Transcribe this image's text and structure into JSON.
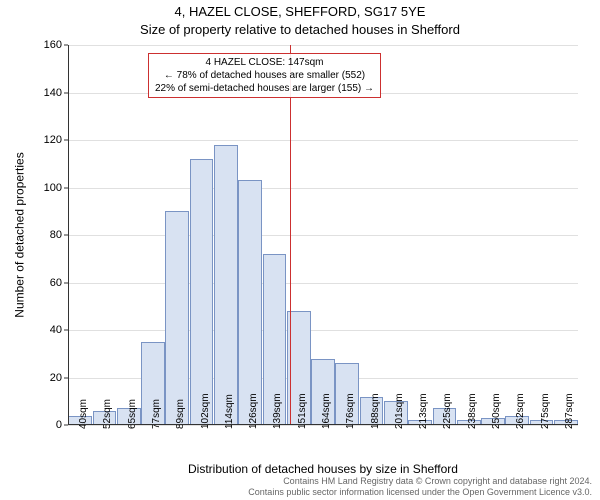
{
  "titles": {
    "line1": "4, HAZEL CLOSE, SHEFFORD, SG17 5YE",
    "line2": "Size of property relative to detached houses in Shefford"
  },
  "yaxis": {
    "label": "Number of detached properties",
    "min": 0,
    "max": 160,
    "ticks": [
      0,
      20,
      40,
      60,
      80,
      100,
      120,
      140,
      160
    ]
  },
  "xaxis": {
    "label": "Distribution of detached houses by size in Shefford",
    "tick_labels": [
      "40sqm",
      "52sqm",
      "65sqm",
      "77sqm",
      "89sqm",
      "102sqm",
      "114sqm",
      "126sqm",
      "139sqm",
      "151sqm",
      "164sqm",
      "176sqm",
      "188sqm",
      "201sqm",
      "213sqm",
      "225sqm",
      "238sqm",
      "250sqm",
      "262sqm",
      "275sqm",
      "287sqm"
    ]
  },
  "bars": {
    "values": [
      4,
      6,
      7,
      35,
      90,
      112,
      118,
      103,
      72,
      48,
      28,
      26,
      12,
      10,
      2,
      7,
      2,
      3,
      4,
      2,
      2
    ],
    "fill_color": "#d8e2f2",
    "border_color": "#7a94c4"
  },
  "reference_line": {
    "position": 0.435,
    "color": "#cc3030"
  },
  "annotation": {
    "line1": "4 HAZEL CLOSE: 147sqm",
    "line2": "← 78% of detached houses are smaller (552)",
    "line3": "22% of semi-detached houses are larger (155) →",
    "border_color": "#cc3030"
  },
  "colors": {
    "grid": "#e0e0e0",
    "axis": "#333333",
    "background": "#ffffff",
    "text": "#000000",
    "attribution": "#666666"
  },
  "attribution": {
    "line1": "Contains HM Land Registry data © Crown copyright and database right 2024.",
    "line2": "Contains public sector information licensed under the Open Government Licence v3.0."
  }
}
